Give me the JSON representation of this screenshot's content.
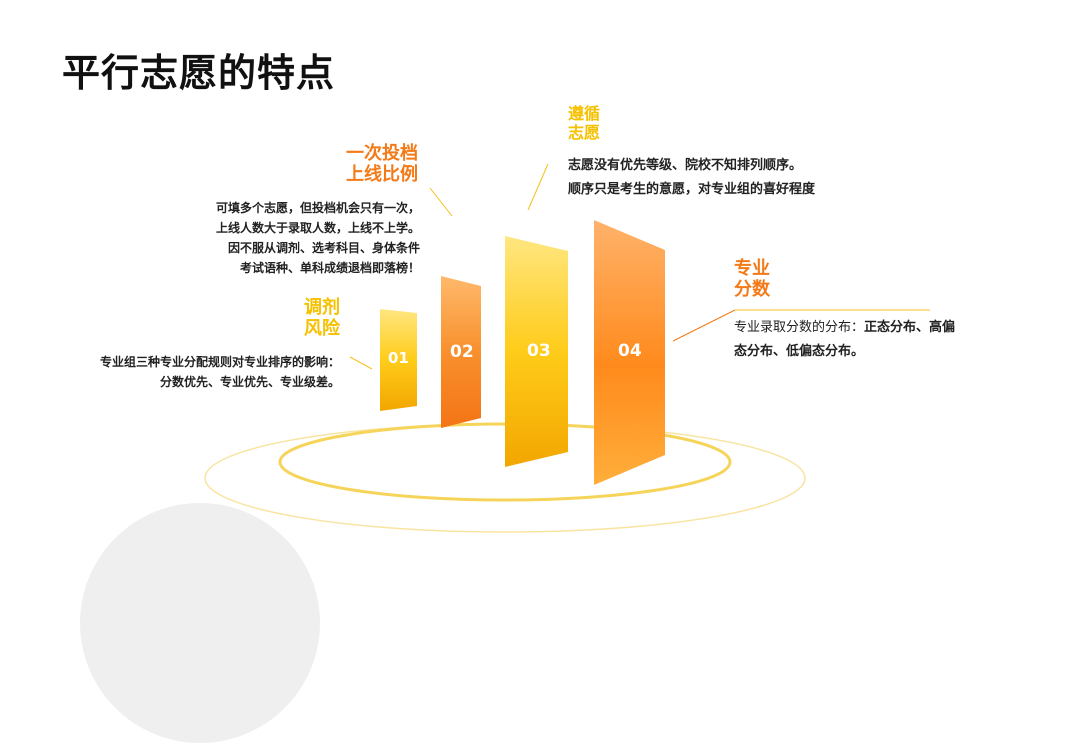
{
  "title": "平行志愿的特点",
  "colors": {
    "yellow": "#f5c100",
    "orange": "#f47a18",
    "text": "#222222"
  },
  "items": [
    {
      "number": "01",
      "heading": [
        "调剂",
        "风险"
      ],
      "lines": [
        "专业组三种专业分配规则对专业排序的影响：",
        "分数优先、专业优先、专业级差。"
      ]
    },
    {
      "number": "02",
      "heading": [
        "一次投档",
        "上线比例"
      ],
      "lines": [
        "可填多个志愿，但投档机会只有一次，",
        "上线人数大于录取人数，上线不上学。",
        "因不服从调剂、选考科目、身体条件",
        "考试语种、单科成绩退档即落榜！"
      ]
    },
    {
      "number": "03",
      "heading": [
        "遵循",
        "志愿"
      ],
      "lines": [
        "志愿没有优先等级、院校不知排列顺序。",
        "顺序只是考生的意愿，对专业组的喜好程度"
      ]
    },
    {
      "number": "04",
      "heading": [
        "专业",
        "分数"
      ],
      "lines_plain": "专业录取分数的分布：",
      "lines_bold": "正态分布、高偏",
      "line2": "态分布、低偏态分布。"
    }
  ]
}
